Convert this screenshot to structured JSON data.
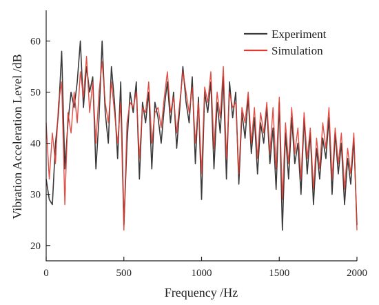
{
  "chart_data": {
    "type": "line",
    "title": "",
    "xlabel": "Frequency /Hz",
    "ylabel": "Vibration Acceleration Level /dB",
    "xlim": [
      0,
      2000
    ],
    "ylim": [
      17,
      66
    ],
    "xticks": [
      0,
      500,
      1000,
      1500,
      2000
    ],
    "yticks": [
      20,
      30,
      40,
      50,
      60
    ],
    "grid": false,
    "legend_position": "top-right",
    "series": [
      {
        "name": "Experiment",
        "color": "#3a3a3a",
        "x": [
          0,
          20,
          40,
          60,
          80,
          100,
          120,
          140,
          160,
          180,
          200,
          220,
          240,
          260,
          280,
          300,
          320,
          340,
          360,
          380,
          400,
          420,
          440,
          460,
          480,
          500,
          520,
          540,
          560,
          580,
          600,
          620,
          640,
          660,
          680,
          700,
          720,
          740,
          760,
          780,
          800,
          820,
          840,
          860,
          880,
          900,
          920,
          940,
          960,
          980,
          1000,
          1020,
          1040,
          1060,
          1080,
          1100,
          1120,
          1140,
          1160,
          1180,
          1200,
          1220,
          1240,
          1260,
          1280,
          1300,
          1320,
          1340,
          1360,
          1380,
          1400,
          1420,
          1440,
          1460,
          1480,
          1500,
          1520,
          1540,
          1560,
          1580,
          1600,
          1620,
          1640,
          1660,
          1680,
          1700,
          1720,
          1740,
          1760,
          1780,
          1800,
          1820,
          1840,
          1860,
          1880,
          1900,
          1920,
          1940,
          1960,
          1980,
          2000
        ],
        "values": [
          33,
          29,
          28,
          40,
          46,
          58,
          35,
          44,
          50,
          47,
          52,
          60,
          47,
          55,
          50,
          53,
          35,
          45,
          60,
          46,
          40,
          55,
          48,
          37,
          52,
          24,
          40,
          50,
          46,
          52,
          33,
          48,
          44,
          50,
          35,
          48,
          45,
          40,
          47,
          52,
          44,
          50,
          39,
          47,
          55,
          48,
          44,
          53,
          36,
          49,
          29,
          50,
          46,
          52,
          35,
          48,
          42,
          53,
          33,
          52,
          45,
          50,
          32,
          46,
          41,
          49,
          38,
          45,
          34,
          44,
          40,
          47,
          36,
          43,
          31,
          48,
          23,
          42,
          33,
          45,
          36,
          40,
          30,
          45,
          34,
          42,
          28,
          39,
          33,
          41,
          37,
          45,
          30,
          42,
          34,
          40,
          28,
          37,
          32,
          41,
          24
        ]
      },
      {
        "name": "Simulation",
        "color": "#e03a30",
        "x": [
          0,
          20,
          40,
          60,
          80,
          100,
          120,
          140,
          160,
          180,
          200,
          220,
          240,
          260,
          280,
          300,
          320,
          340,
          360,
          380,
          400,
          420,
          440,
          460,
          480,
          500,
          520,
          540,
          560,
          580,
          600,
          620,
          640,
          660,
          680,
          700,
          720,
          740,
          760,
          780,
          800,
          820,
          840,
          860,
          880,
          900,
          920,
          940,
          960,
          980,
          1000,
          1020,
          1040,
          1060,
          1080,
          1100,
          1120,
          1140,
          1160,
          1180,
          1200,
          1220,
          1240,
          1260,
          1280,
          1300,
          1320,
          1340,
          1360,
          1380,
          1400,
          1420,
          1440,
          1460,
          1480,
          1500,
          1520,
          1540,
          1560,
          1580,
          1600,
          1620,
          1640,
          1660,
          1680,
          1700,
          1720,
          1740,
          1760,
          1780,
          1800,
          1820,
          1840,
          1860,
          1880,
          1900,
          1920,
          1940,
          1960,
          1980,
          2000
        ],
        "values": [
          44,
          33,
          42,
          36,
          48,
          52,
          28,
          46,
          42,
          50,
          44,
          54,
          49,
          57,
          46,
          52,
          40,
          50,
          56,
          48,
          44,
          52,
          46,
          40,
          48,
          23,
          44,
          48,
          47,
          50,
          37,
          47,
          46,
          52,
          40,
          46,
          47,
          43,
          49,
          54,
          46,
          49,
          42,
          48,
          54,
          50,
          46,
          51,
          40,
          48,
          34,
          51,
          48,
          54,
          39,
          50,
          45,
          55,
          37,
          50,
          47,
          48,
          34,
          47,
          44,
          50,
          40,
          47,
          37,
          46,
          42,
          48,
          38,
          47,
          35,
          49,
          29,
          44,
          36,
          47,
          38,
          43,
          33,
          46,
          37,
          43,
          31,
          41,
          35,
          44,
          39,
          47,
          33,
          43,
          36,
          42,
          31,
          39,
          34,
          42,
          23
        ]
      }
    ]
  }
}
